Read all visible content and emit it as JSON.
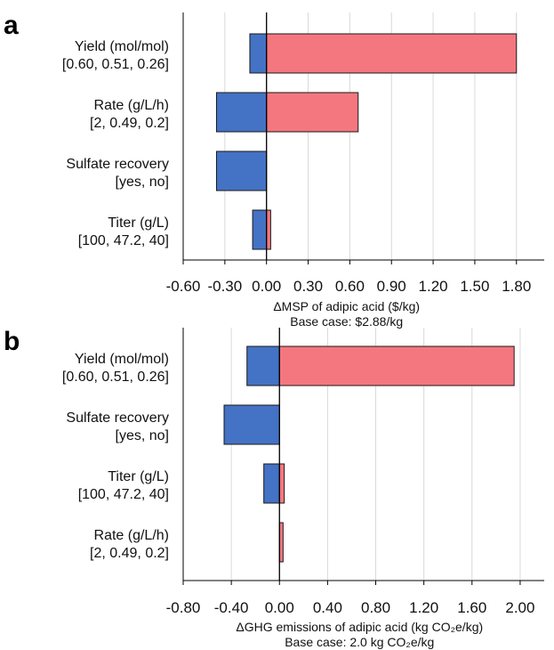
{
  "colors": {
    "negative": "#4472C4",
    "positive": "#F4777F",
    "grid": "#d9d9d9",
    "axis": "#000000"
  },
  "chart_data": [
    {
      "type": "bar",
      "orientation": "horizontal",
      "panel_label": "a",
      "categories": [
        [
          "Yield (mol/mol)",
          "[0.60, 0.51, 0.26]"
        ],
        [
          "Rate (g/L/h)",
          "[2, 0.49, 0.2]"
        ],
        [
          "Sulfate recovery",
          "[yes, no]"
        ],
        [
          "Titer (g/L)",
          "[100, 47.2, 40]"
        ]
      ],
      "series": [
        {
          "values_low": [
            -0.12,
            -0.36,
            -0.36,
            -0.1
          ]
        },
        {
          "values_high": [
            1.8,
            0.66,
            0.0,
            0.03
          ]
        }
      ],
      "xlabel_lines": [
        "ΔMSP of adipic acid ($/kg)",
        "Base case: $2.88/kg"
      ],
      "xlim": [
        -0.6,
        2.0
      ],
      "xticks": [
        -0.6,
        -0.3,
        0.0,
        0.3,
        0.6,
        0.9,
        1.2,
        1.5,
        1.8
      ],
      "tick_labels": [
        "-0.60",
        "-0.30",
        "0.00",
        "0.30",
        "0.60",
        "0.90",
        "1.20",
        "1.50",
        "1.80"
      ],
      "grid": true
    },
    {
      "type": "bar",
      "orientation": "horizontal",
      "panel_label": "b",
      "categories": [
        [
          "Yield (mol/mol)",
          "[0.60, 0.51, 0.26]"
        ],
        [
          "Sulfate recovery",
          "[yes, no]"
        ],
        [
          "Titer (g/L)",
          "[100, 47.2, 40]"
        ],
        [
          "Rate (g/L/h)",
          "[2, 0.49, 0.2]"
        ]
      ],
      "series": [
        {
          "values_low": [
            -0.27,
            -0.46,
            -0.13,
            0.0
          ]
        },
        {
          "values_high": [
            1.95,
            0.0,
            0.04,
            0.03
          ]
        }
      ],
      "xlabel_lines": [
        "ΔGHG emissions of adipic acid (kg CO₂e/kg)",
        "Base case: 2.0 kg CO₂e/kg"
      ],
      "xlim": [
        -0.8,
        2.2
      ],
      "xticks": [
        -0.8,
        -0.4,
        0.0,
        0.4,
        0.8,
        1.2,
        1.6,
        2.0
      ],
      "tick_labels": [
        "-0.80",
        "-0.40",
        "0.00",
        "0.40",
        "0.80",
        "1.20",
        "1.60",
        "2.00"
      ],
      "grid": true
    }
  ]
}
